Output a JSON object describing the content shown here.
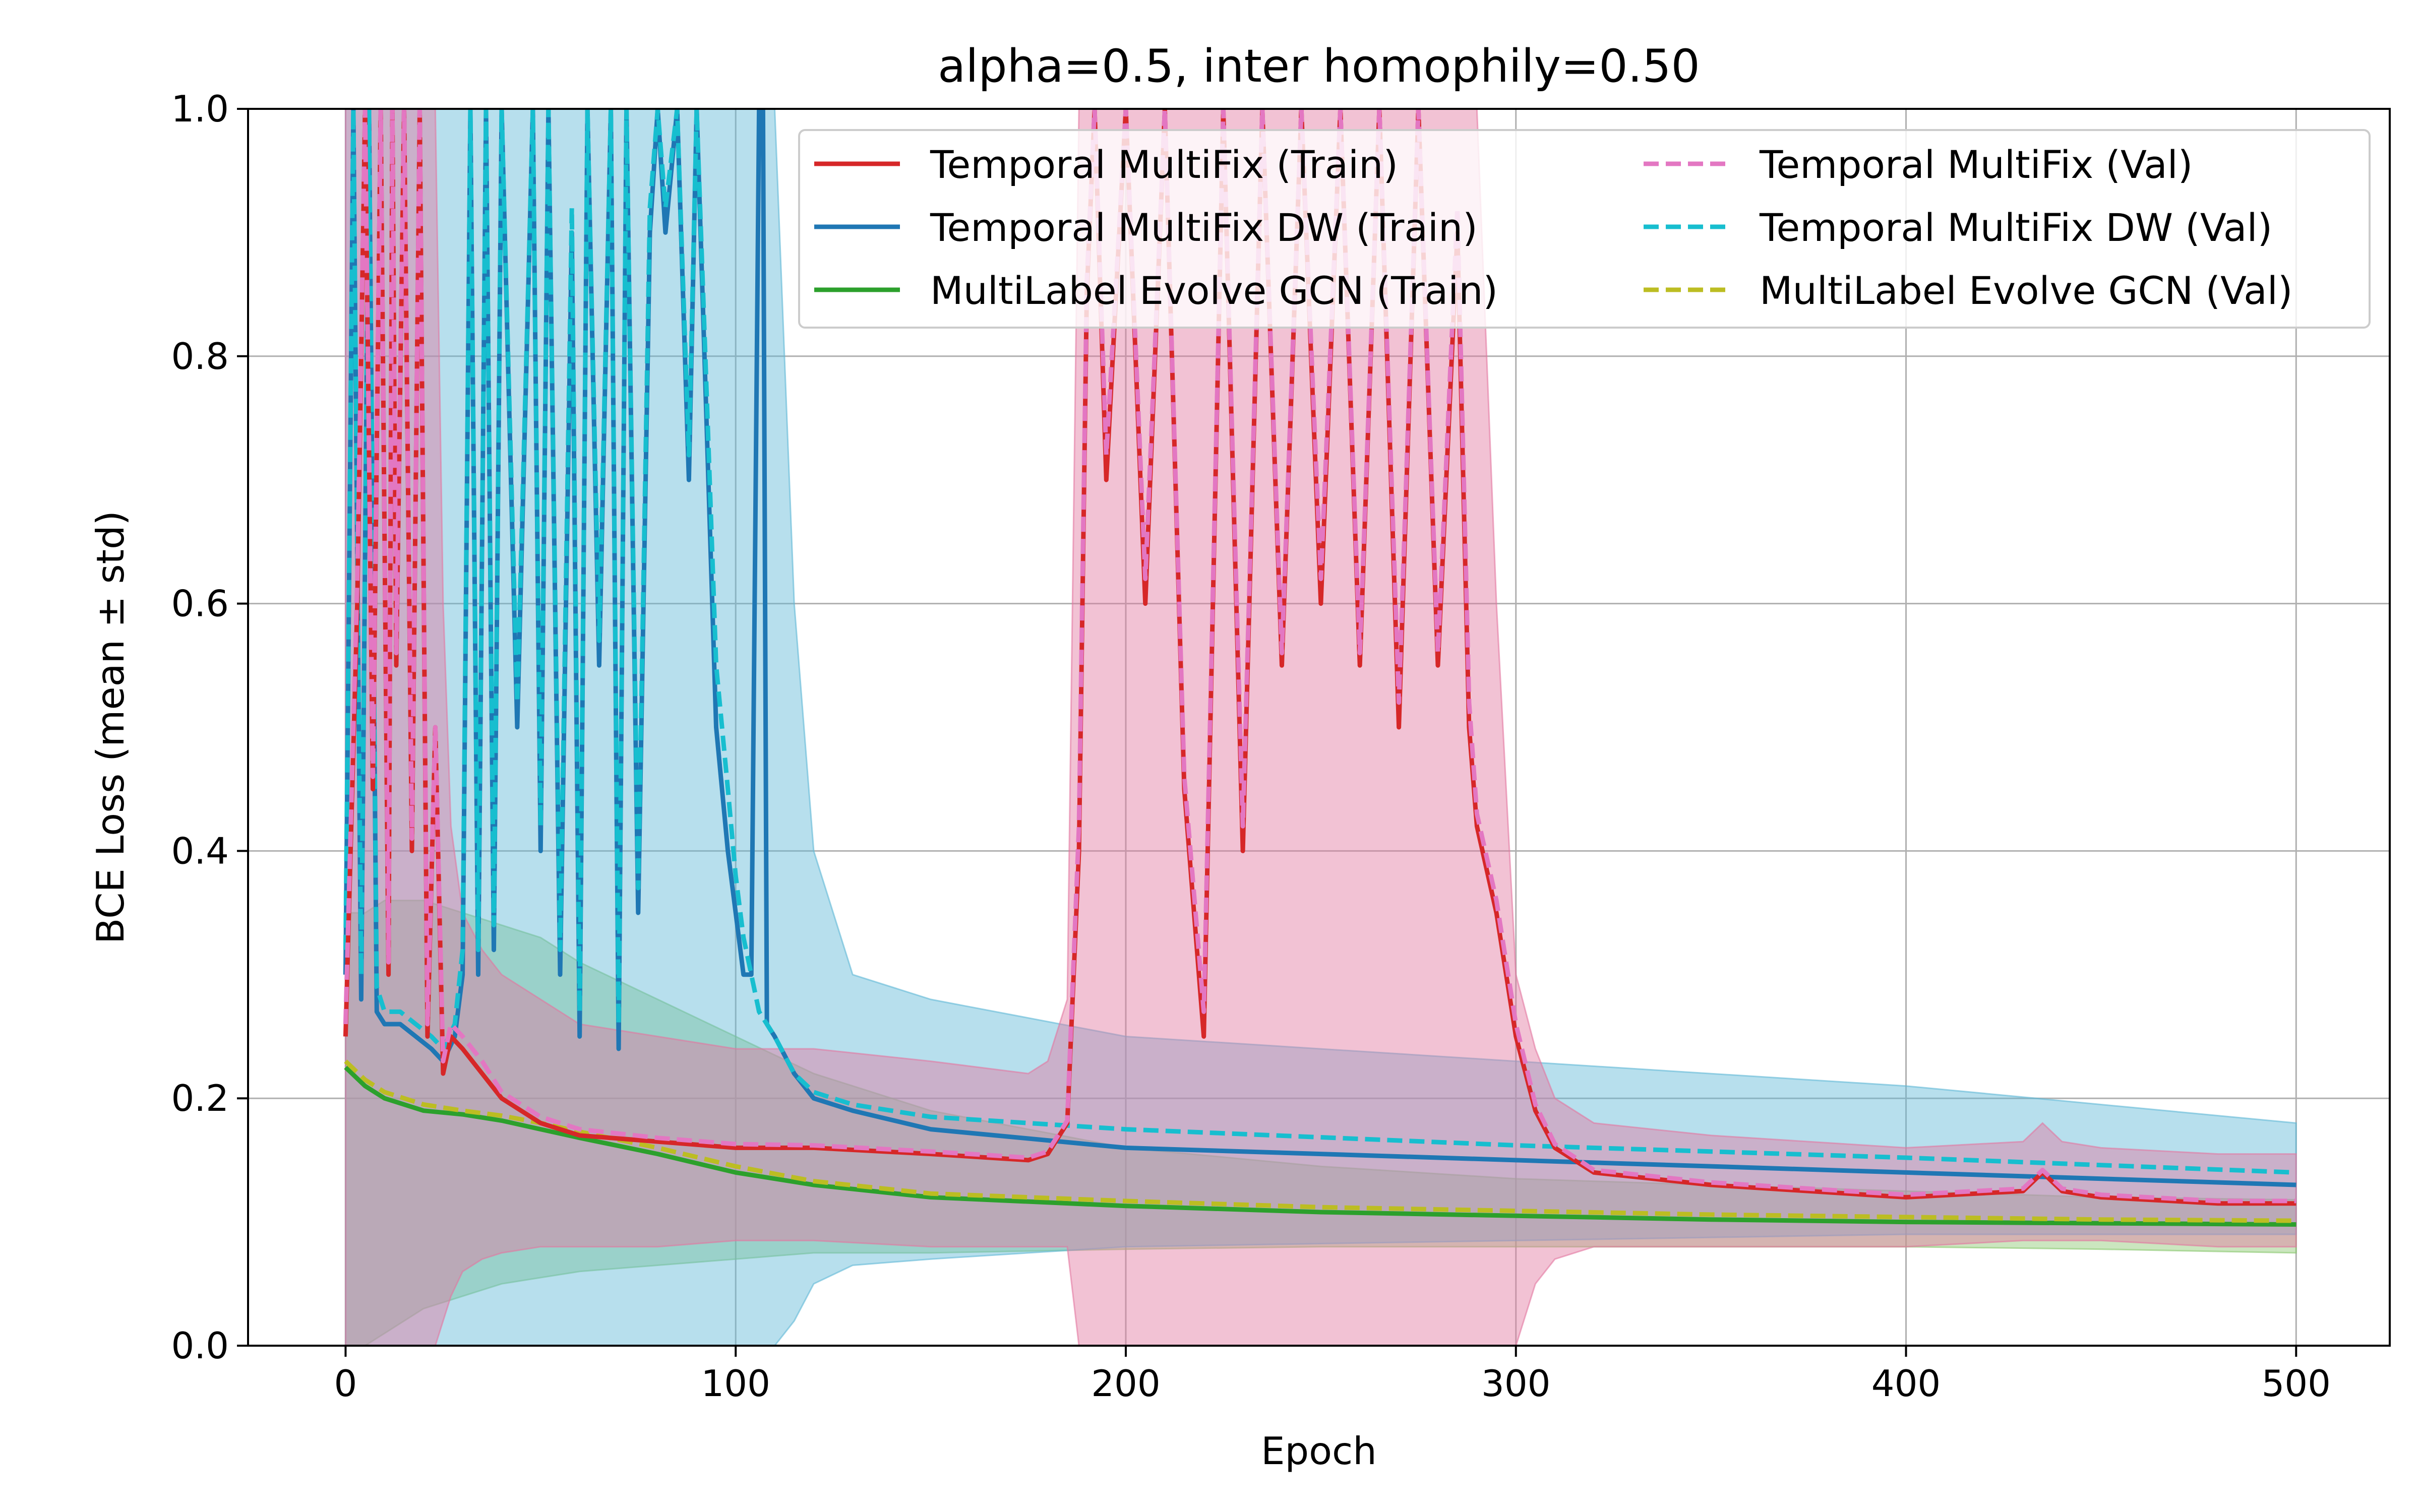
{
  "chart_data": {
    "type": "line",
    "title": "alpha=0.5, inter homophily=0.50",
    "xlabel": "Epoch",
    "ylabel": "BCE Loss (mean ± std)",
    "xlim": [
      -25,
      524
    ],
    "ylim": [
      0.0,
      1.0
    ],
    "xticks": [
      0,
      100,
      200,
      300,
      400,
      500
    ],
    "yticks": [
      0.0,
      0.2,
      0.4,
      0.6,
      0.8,
      1.0
    ],
    "xtick_labels": [
      "0",
      "100",
      "200",
      "300",
      "400",
      "500"
    ],
    "ytick_labels": [
      "0.0",
      "0.2",
      "0.4",
      "0.6",
      "0.8",
      "1.0"
    ],
    "grid": true,
    "legend_position": "top-right",
    "legend_columns": 2,
    "series": [
      {
        "name": "Temporal MultiFix (Train)",
        "color": "#d62728",
        "style": "solid",
        "band_color": "#e377a0",
        "x": [
          0,
          3,
          5,
          7,
          9,
          11,
          12,
          13,
          15,
          17,
          19,
          21,
          23,
          25,
          27,
          30,
          35,
          40,
          50,
          60,
          80,
          100,
          120,
          150,
          175,
          180,
          185,
          188,
          190,
          192,
          195,
          200,
          205,
          210,
          215,
          220,
          225,
          230,
          235,
          240,
          245,
          250,
          255,
          260,
          265,
          270,
          275,
          280,
          285,
          288,
          290,
          295,
          300,
          305,
          310,
          320,
          350,
          400,
          430,
          435,
          440,
          450,
          480,
          500
        ],
        "y": [
          0.25,
          0.6,
          1.0,
          0.45,
          1.0,
          0.3,
          1.0,
          0.55,
          1.0,
          0.4,
          1.0,
          0.25,
          0.5,
          0.22,
          0.25,
          0.24,
          0.22,
          0.2,
          0.18,
          0.17,
          0.165,
          0.16,
          0.16,
          0.155,
          0.15,
          0.155,
          0.18,
          0.4,
          0.85,
          1.0,
          0.7,
          1.0,
          0.6,
          1.0,
          0.45,
          0.25,
          1.0,
          0.4,
          1.0,
          0.55,
          1.0,
          0.6,
          1.0,
          0.55,
          1.0,
          0.5,
          1.0,
          0.55,
          0.9,
          0.5,
          0.42,
          0.35,
          0.25,
          0.19,
          0.16,
          0.14,
          0.13,
          0.12,
          0.125,
          0.14,
          0.125,
          0.12,
          0.115,
          0.115
        ],
        "lower": [
          0.0,
          0.0,
          0.0,
          0.0,
          0.0,
          0.0,
          0.0,
          0.0,
          0.0,
          0.0,
          0.0,
          0.0,
          0.0,
          0.02,
          0.04,
          0.06,
          0.07,
          0.075,
          0.08,
          0.08,
          0.08,
          0.085,
          0.085,
          0.08,
          0.08,
          0.08,
          0.08,
          0.0,
          0.0,
          0.0,
          0.0,
          0.0,
          0.0,
          0.0,
          0.0,
          0.0,
          0.0,
          0.0,
          0.0,
          0.0,
          0.0,
          0.0,
          0.0,
          0.0,
          0.0,
          0.0,
          0.0,
          0.0,
          0.0,
          0.0,
          0.0,
          0.0,
          0.0,
          0.05,
          0.07,
          0.08,
          0.08,
          0.08,
          0.085,
          0.085,
          0.085,
          0.085,
          0.08,
          0.08
        ],
        "upper": [
          1.0,
          1.0,
          1.0,
          1.0,
          1.0,
          1.0,
          1.0,
          1.0,
          1.0,
          1.0,
          1.0,
          1.0,
          1.0,
          0.6,
          0.42,
          0.35,
          0.32,
          0.3,
          0.28,
          0.26,
          0.25,
          0.24,
          0.24,
          0.23,
          0.22,
          0.23,
          0.28,
          1.0,
          1.0,
          1.0,
          1.0,
          1.0,
          1.0,
          1.0,
          1.0,
          1.0,
          1.0,
          1.0,
          1.0,
          1.0,
          1.0,
          1.0,
          1.0,
          1.0,
          1.0,
          1.0,
          1.0,
          1.0,
          1.0,
          1.0,
          1.0,
          0.6,
          0.3,
          0.24,
          0.2,
          0.18,
          0.17,
          0.16,
          0.165,
          0.18,
          0.165,
          0.16,
          0.155,
          0.155
        ]
      },
      {
        "name": "Temporal MultiFix DW (Train)",
        "color": "#1f77b4",
        "style": "solid",
        "band_color": "#5fb8d6",
        "x": [
          0,
          2,
          4,
          6,
          8,
          10,
          14,
          18,
          22,
          25,
          28,
          30,
          32,
          34,
          36,
          38,
          40,
          44,
          48,
          50,
          52,
          55,
          58,
          60,
          62,
          65,
          68,
          70,
          72,
          75,
          78,
          80,
          82,
          85,
          88,
          90,
          92,
          95,
          98,
          100,
          102,
          104,
          106,
          107,
          108,
          110,
          115,
          120,
          130,
          150,
          200,
          300,
          400,
          500
        ],
        "y": [
          0.3,
          1.0,
          0.28,
          1.0,
          0.27,
          0.26,
          0.26,
          0.25,
          0.24,
          0.23,
          0.25,
          0.3,
          1.0,
          0.3,
          1.0,
          0.32,
          1.0,
          0.5,
          1.0,
          0.4,
          1.0,
          0.3,
          0.9,
          0.25,
          1.0,
          0.55,
          1.0,
          0.24,
          1.0,
          0.35,
          0.9,
          1.0,
          0.9,
          1.0,
          0.7,
          1.0,
          0.8,
          0.5,
          0.4,
          0.35,
          0.3,
          0.3,
          1.0,
          1.0,
          0.26,
          0.25,
          0.22,
          0.2,
          0.19,
          0.175,
          0.16,
          0.15,
          0.14,
          0.13
        ],
        "lower": [
          0.0,
          0.0,
          0.0,
          0.0,
          0.0,
          0.0,
          0.0,
          0.0,
          0.0,
          0.0,
          0.0,
          0.0,
          0.0,
          0.0,
          0.0,
          0.0,
          0.0,
          0.0,
          0.0,
          0.0,
          0.0,
          0.0,
          0.0,
          0.0,
          0.0,
          0.0,
          0.0,
          0.0,
          0.0,
          0.0,
          0.0,
          0.0,
          0.0,
          0.0,
          0.0,
          0.0,
          0.0,
          0.0,
          0.0,
          0.0,
          0.0,
          0.0,
          0.0,
          0.0,
          0.0,
          0.0,
          0.02,
          0.05,
          0.065,
          0.07,
          0.08,
          0.085,
          0.09,
          0.09
        ],
        "upper": [
          1.0,
          1.0,
          1.0,
          1.0,
          1.0,
          1.0,
          1.0,
          1.0,
          1.0,
          1.0,
          1.0,
          1.0,
          1.0,
          1.0,
          1.0,
          1.0,
          1.0,
          1.0,
          1.0,
          1.0,
          1.0,
          1.0,
          1.0,
          1.0,
          1.0,
          1.0,
          1.0,
          1.0,
          1.0,
          1.0,
          1.0,
          1.0,
          1.0,
          1.0,
          1.0,
          1.0,
          1.0,
          1.0,
          1.0,
          1.0,
          1.0,
          1.0,
          1.0,
          1.0,
          1.0,
          1.0,
          0.6,
          0.4,
          0.3,
          0.28,
          0.25,
          0.23,
          0.21,
          0.18
        ]
      },
      {
        "name": "MultiLabel Evolve GCN (Train)",
        "color": "#2ca02c",
        "style": "solid",
        "band_color": "#8bc870",
        "x": [
          0,
          5,
          10,
          20,
          30,
          40,
          50,
          60,
          80,
          100,
          120,
          150,
          200,
          250,
          300,
          350,
          400,
          450,
          500
        ],
        "y": [
          0.225,
          0.21,
          0.2,
          0.19,
          0.187,
          0.182,
          0.175,
          0.168,
          0.155,
          0.14,
          0.13,
          0.12,
          0.113,
          0.108,
          0.105,
          0.102,
          0.1,
          0.099,
          0.098
        ],
        "lower": [
          0.0,
          0.0,
          0.01,
          0.03,
          0.04,
          0.05,
          0.055,
          0.06,
          0.065,
          0.07,
          0.075,
          0.075,
          0.078,
          0.08,
          0.08,
          0.08,
          0.08,
          0.078,
          0.075
        ],
        "upper": [
          0.35,
          0.35,
          0.36,
          0.36,
          0.35,
          0.34,
          0.33,
          0.31,
          0.28,
          0.25,
          0.22,
          0.19,
          0.16,
          0.145,
          0.135,
          0.13,
          0.125,
          0.12,
          0.118
        ]
      },
      {
        "name": "Temporal MultiFix (Val)",
        "color": "#e377c2",
        "style": "dashed",
        "x": [
          0,
          3,
          5,
          7,
          9,
          11,
          12,
          13,
          15,
          17,
          19,
          21,
          23,
          25,
          27,
          30,
          35,
          40,
          50,
          60,
          80,
          100,
          120,
          150,
          175,
          180,
          185,
          188,
          190,
          192,
          195,
          200,
          205,
          210,
          215,
          220,
          225,
          230,
          235,
          240,
          245,
          250,
          255,
          260,
          265,
          270,
          275,
          280,
          285,
          288,
          290,
          295,
          300,
          305,
          310,
          320,
          350,
          400,
          430,
          435,
          440,
          450,
          480,
          500
        ],
        "y": [
          0.26,
          0.62,
          1.0,
          0.46,
          1.0,
          0.31,
          1.0,
          0.56,
          1.0,
          0.41,
          1.0,
          0.26,
          0.5,
          0.23,
          0.26,
          0.25,
          0.23,
          0.205,
          0.185,
          0.175,
          0.168,
          0.163,
          0.162,
          0.157,
          0.152,
          0.157,
          0.182,
          0.42,
          0.86,
          1.0,
          0.72,
          1.0,
          0.62,
          1.0,
          0.46,
          0.27,
          1.0,
          0.42,
          1.0,
          0.56,
          1.0,
          0.62,
          1.0,
          0.56,
          1.0,
          0.52,
          1.0,
          0.56,
          0.92,
          0.52,
          0.43,
          0.36,
          0.26,
          0.195,
          0.163,
          0.142,
          0.132,
          0.122,
          0.127,
          0.142,
          0.127,
          0.122,
          0.117,
          0.117
        ]
      },
      {
        "name": "Temporal MultiFix DW (Val)",
        "color": "#17becf",
        "style": "dashed",
        "x": [
          0,
          2,
          4,
          6,
          8,
          10,
          14,
          18,
          22,
          25,
          28,
          30,
          32,
          34,
          36,
          38,
          40,
          44,
          48,
          50,
          52,
          55,
          58,
          60,
          62,
          65,
          68,
          70,
          72,
          75,
          78,
          80,
          82,
          85,
          88,
          90,
          92,
          95,
          98,
          100,
          102,
          104,
          106,
          108,
          110,
          115,
          120,
          130,
          150,
          200,
          300,
          400,
          500
        ],
        "y": [
          0.32,
          1.0,
          0.3,
          1.0,
          0.29,
          0.27,
          0.27,
          0.26,
          0.25,
          0.24,
          0.26,
          0.32,
          1.0,
          0.32,
          1.0,
          0.34,
          1.0,
          0.52,
          1.0,
          0.42,
          1.0,
          0.32,
          0.92,
          0.27,
          1.0,
          0.57,
          1.0,
          0.26,
          1.0,
          0.37,
          0.92,
          1.0,
          0.92,
          1.0,
          0.72,
          1.0,
          0.82,
          0.55,
          0.45,
          0.38,
          0.33,
          0.3,
          0.27,
          0.26,
          0.25,
          0.22,
          0.205,
          0.195,
          0.185,
          0.175,
          0.162,
          0.152,
          0.14
        ]
      },
      {
        "name": "MultiLabel Evolve GCN (Val)",
        "color": "#bcbd22",
        "style": "dashed",
        "x": [
          0,
          5,
          10,
          20,
          30,
          40,
          50,
          60,
          80,
          100,
          120,
          150,
          200,
          250,
          300,
          350,
          400,
          450,
          500
        ],
        "y": [
          0.23,
          0.215,
          0.205,
          0.195,
          0.19,
          0.186,
          0.18,
          0.173,
          0.16,
          0.145,
          0.133,
          0.123,
          0.117,
          0.112,
          0.109,
          0.106,
          0.104,
          0.102,
          0.101
        ]
      }
    ]
  }
}
